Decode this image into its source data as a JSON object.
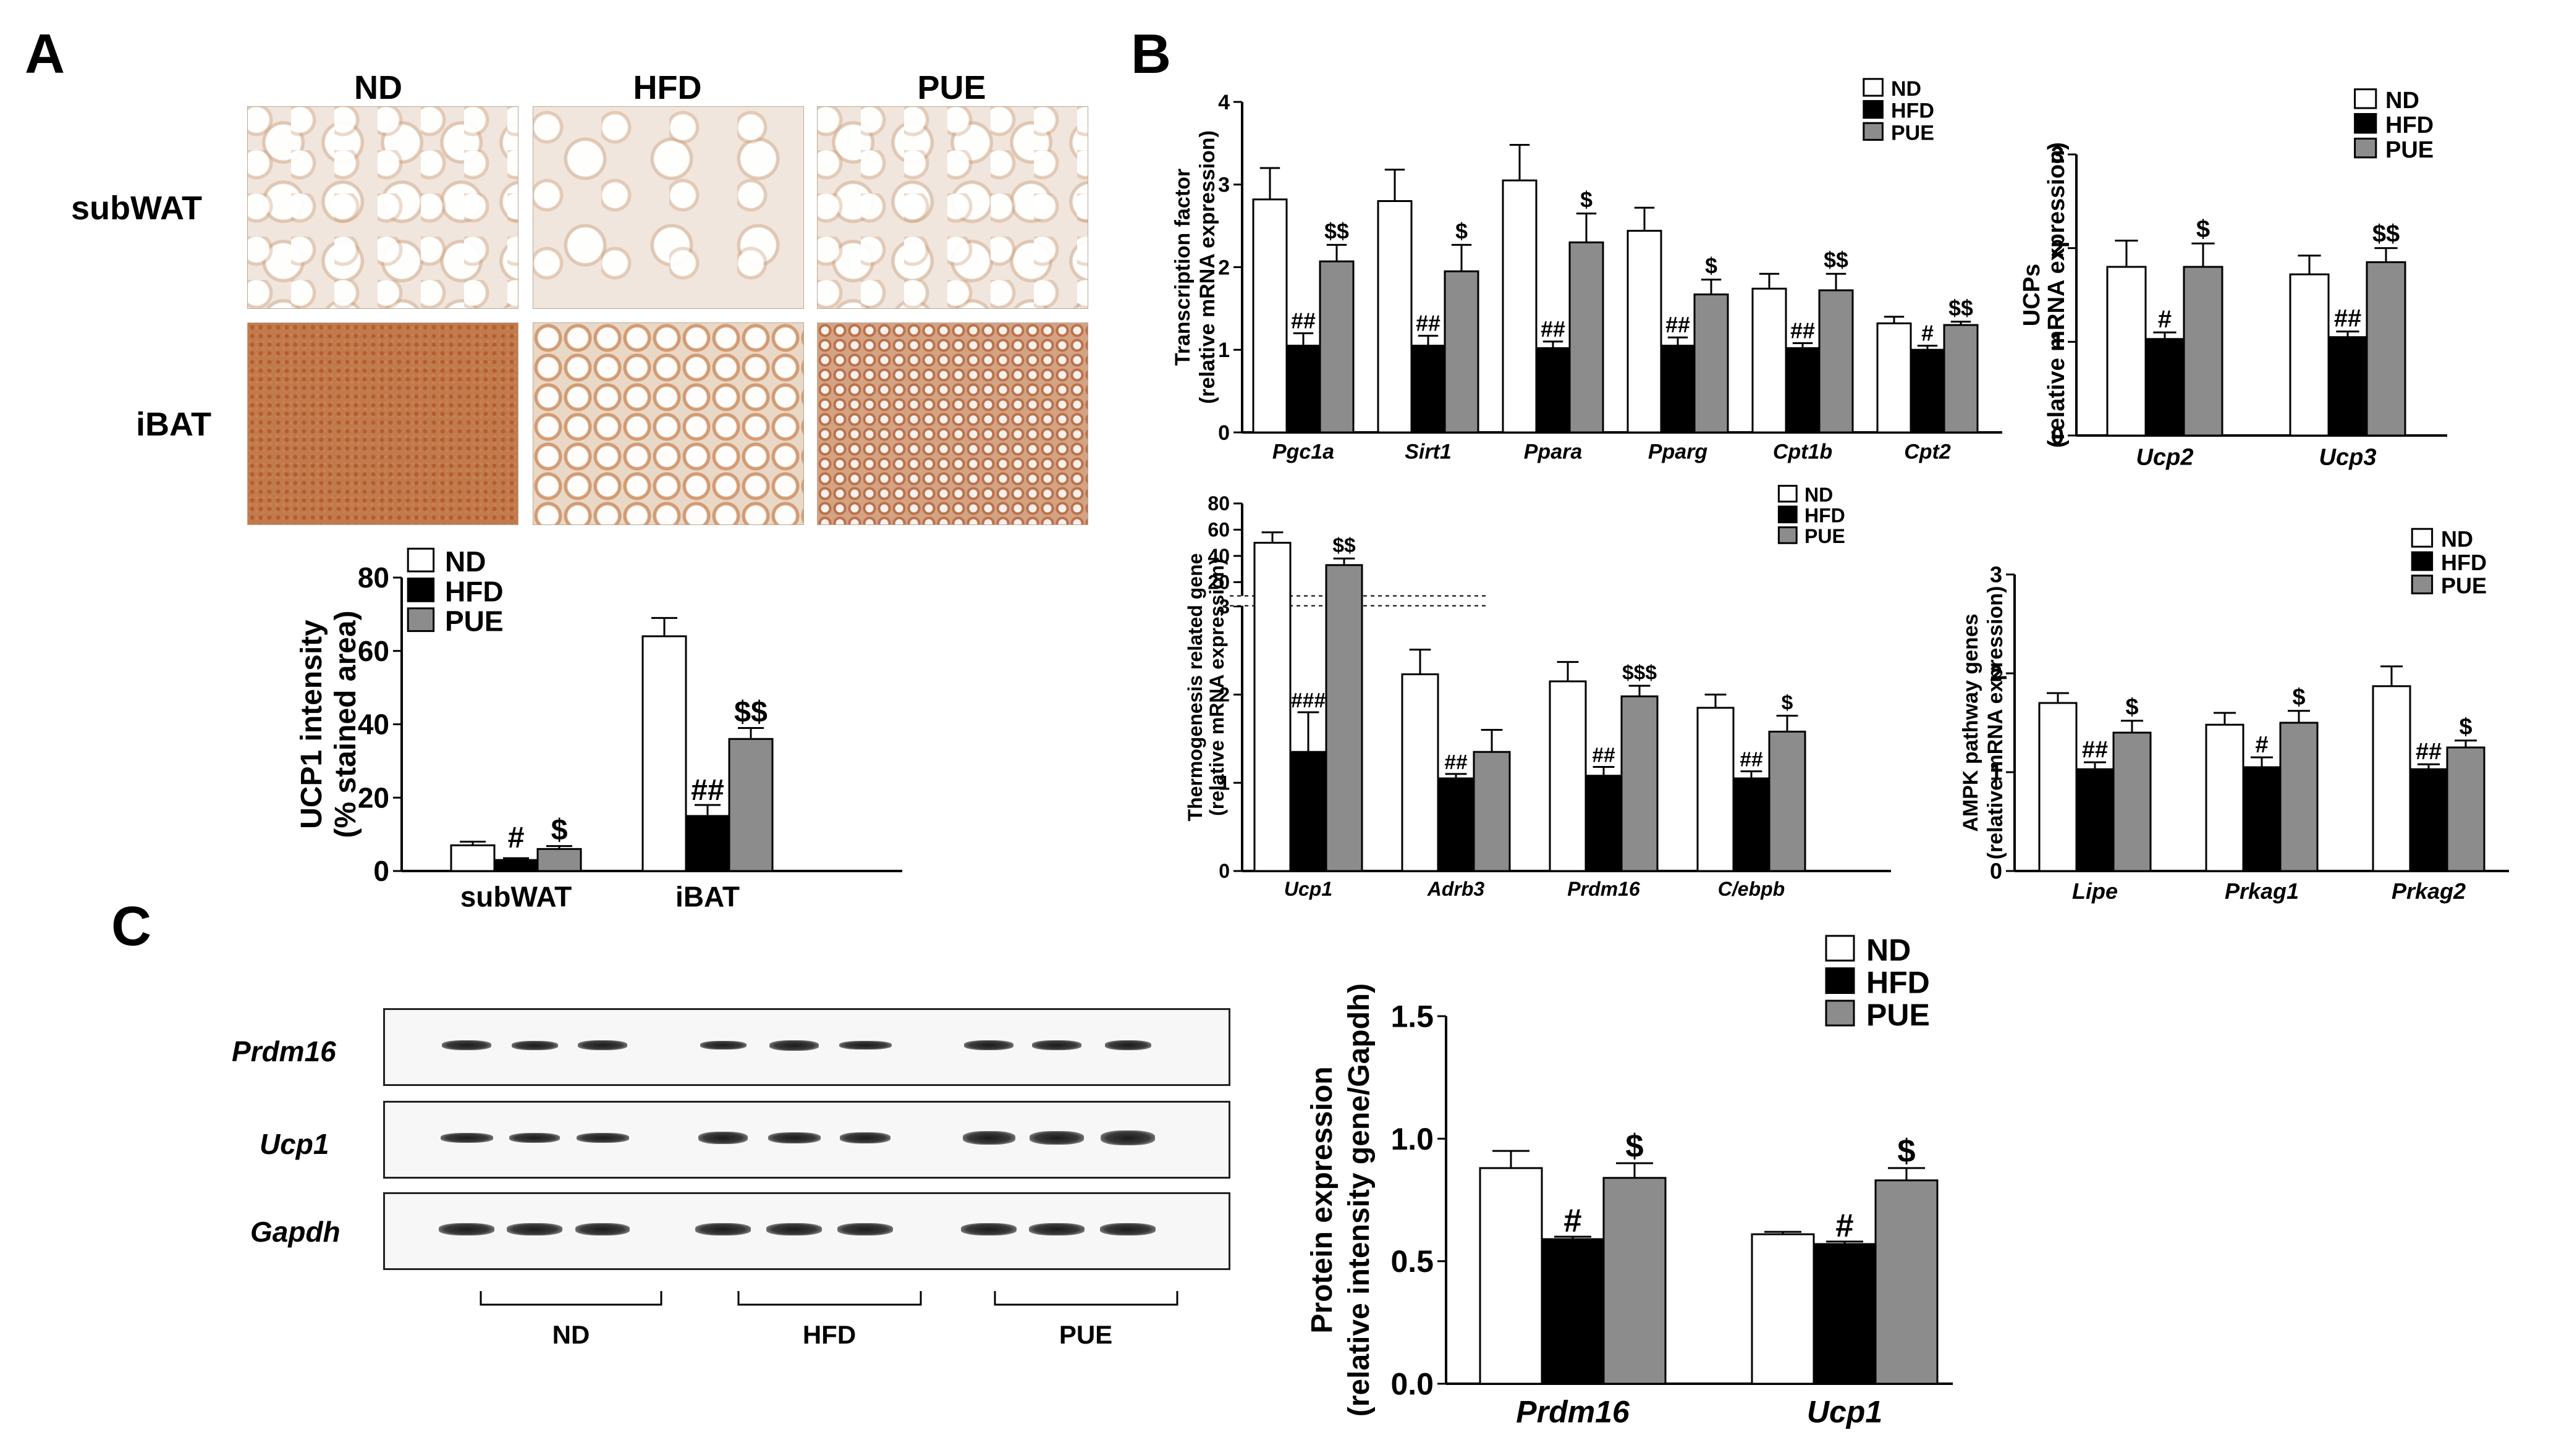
{
  "panel_labels": {
    "a": "A",
    "b": "B",
    "c": "C"
  },
  "panel_a": {
    "micro_columns": [
      "ND",
      "HFD",
      "PUE"
    ],
    "micro_rows": [
      "subWAT",
      "iBAT"
    ]
  },
  "panel_c": {
    "blot_rows": [
      "Prdm16",
      "Ucp1",
      "Gapdh"
    ],
    "blot_groups": [
      "ND",
      "HFD",
      "PUE"
    ]
  },
  "legend_groups": [
    "ND",
    "HFD",
    "PUE"
  ],
  "colors": {
    "ND": "#ffffff",
    "HFD": "#000000",
    "PUE": "#8c8c8c"
  },
  "chart_data": [
    {
      "id": "ucp1-intensity",
      "type": "bar",
      "categories": [
        "subWAT",
        "iBAT"
      ],
      "ylabel": [
        "UCP1 intensity",
        "(% stained area)"
      ],
      "ylim": [
        0,
        80
      ],
      "yticks": [
        0,
        20,
        40,
        60,
        80
      ],
      "series": [
        {
          "name": "ND",
          "values": [
            7,
            64
          ],
          "errors": [
            1,
            5
          ]
        },
        {
          "name": "HFD",
          "values": [
            3,
            15
          ],
          "errors": [
            0.5,
            3
          ]
        },
        {
          "name": "PUE",
          "values": [
            6,
            36
          ],
          "errors": [
            0.8,
            3
          ]
        }
      ],
      "annotations": [
        [
          "",
          "#",
          "$"
        ],
        [
          "",
          "##",
          "$$"
        ]
      ]
    },
    {
      "id": "transcription-factor",
      "type": "bar",
      "categories": [
        "Pgc1a",
        "Sirt1",
        "Ppara",
        "Pparg",
        "Cpt1b",
        "Cpt2"
      ],
      "ylabel": [
        "Transcription factor",
        "(relative mRNA expression)"
      ],
      "ylim": [
        0,
        4
      ],
      "yticks": [
        0,
        1,
        2,
        3,
        4
      ],
      "series": [
        {
          "name": "ND",
          "values": [
            2.82,
            2.8,
            3.05,
            2.44,
            1.74,
            1.32
          ],
          "errors": [
            0.38,
            0.38,
            0.43,
            0.28,
            0.18,
            0.08
          ]
        },
        {
          "name": "HFD",
          "values": [
            1.05,
            1.05,
            1.02,
            1.05,
            1.02,
            1.0
          ],
          "errors": [
            0.15,
            0.12,
            0.08,
            0.1,
            0.06,
            0.05
          ]
        },
        {
          "name": "PUE",
          "values": [
            2.07,
            1.95,
            2.3,
            1.67,
            1.72,
            1.3
          ],
          "errors": [
            0.2,
            0.32,
            0.35,
            0.18,
            0.2,
            0.04
          ]
        }
      ],
      "annotations": [
        [
          "",
          "##",
          "$$"
        ],
        [
          "",
          "##",
          "$"
        ],
        [
          "",
          "##",
          "$"
        ],
        [
          "",
          "##",
          "$"
        ],
        [
          "",
          "##",
          "$$"
        ],
        [
          "",
          "#",
          "$$"
        ]
      ]
    },
    {
      "id": "ucps",
      "type": "bar",
      "categories": [
        "Ucp2",
        "Ucp3"
      ],
      "ylabel": [
        "UCPs",
        "(relative mRNA expression)"
      ],
      "ylim": [
        0,
        3
      ],
      "yticks": [
        0,
        1,
        2,
        3
      ],
      "series": [
        {
          "name": "ND",
          "values": [
            1.8,
            1.72
          ],
          "errors": [
            0.28,
            0.2
          ]
        },
        {
          "name": "HFD",
          "values": [
            1.03,
            1.05
          ],
          "errors": [
            0.07,
            0.06
          ]
        },
        {
          "name": "PUE",
          "values": [
            1.8,
            1.85
          ],
          "errors": [
            0.25,
            0.15
          ]
        }
      ],
      "annotations": [
        [
          "",
          "#",
          "$"
        ],
        [
          "",
          "##",
          "$$"
        ]
      ]
    },
    {
      "id": "thermogenesis",
      "type": "bar",
      "categories": [
        "Ucp1",
        "Adrb3",
        "Prdm16",
        "C/ebpb"
      ],
      "ylabel": [
        "Thermogenesis related gene",
        "(relative mRNA expression)"
      ],
      "ylim": [
        0,
        80
      ],
      "yaxis_break": [
        3,
        10
      ],
      "yticks": [
        0,
        1,
        2,
        3,
        20,
        40,
        60,
        80
      ],
      "series": [
        {
          "name": "ND",
          "values": [
            50,
            2.23,
            2.15,
            1.85
          ],
          "errors": [
            8,
            0.28,
            0.22,
            0.15
          ]
        },
        {
          "name": "HFD",
          "values": [
            1.35,
            1.05,
            1.08,
            1.05
          ],
          "errors": [
            0.45,
            0.05,
            0.1,
            0.08
          ]
        },
        {
          "name": "PUE",
          "values": [
            33,
            1.35,
            1.98,
            1.58
          ],
          "errors": [
            5,
            0.25,
            0.12,
            0.18
          ]
        }
      ],
      "annotations": [
        [
          "",
          "###",
          "$$"
        ],
        [
          "",
          "##",
          ""
        ],
        [
          "",
          "##",
          "$$$"
        ],
        [
          "",
          "##",
          "$"
        ]
      ]
    },
    {
      "id": "ampk",
      "type": "bar",
      "categories": [
        "Lipe",
        "Prkag1",
        "Prkag2"
      ],
      "ylabel": [
        "AMPK pathway genes",
        "(relative mRNA expression)"
      ],
      "ylim": [
        0,
        3
      ],
      "yticks": [
        0,
        1,
        2,
        3
      ],
      "series": [
        {
          "name": "ND",
          "values": [
            1.7,
            1.48,
            1.87
          ],
          "errors": [
            0.1,
            0.12,
            0.2
          ]
        },
        {
          "name": "HFD",
          "values": [
            1.03,
            1.05,
            1.03
          ],
          "errors": [
            0.07,
            0.1,
            0.05
          ]
        },
        {
          "name": "PUE",
          "values": [
            1.4,
            1.5,
            1.25
          ],
          "errors": [
            0.12,
            0.12,
            0.07
          ]
        }
      ],
      "annotations": [
        [
          "",
          "##",
          "$"
        ],
        [
          "",
          "#",
          "$"
        ],
        [
          "",
          "##",
          "$"
        ]
      ]
    },
    {
      "id": "protein-expression",
      "type": "bar",
      "categories": [
        "Prdm16",
        "Ucp1"
      ],
      "ylabel": [
        "Protein expression",
        "(relative intensity gene/Gapdh)"
      ],
      "ylim": [
        0,
        1.5
      ],
      "yticks": [
        0.0,
        0.5,
        1.0,
        1.5
      ],
      "series": [
        {
          "name": "ND",
          "values": [
            0.88,
            0.61
          ],
          "errors": [
            0.07,
            0.01
          ]
        },
        {
          "name": "HFD",
          "values": [
            0.59,
            0.57
          ],
          "errors": [
            0.01,
            0.01
          ]
        },
        {
          "name": "PUE",
          "values": [
            0.84,
            0.83
          ],
          "errors": [
            0.06,
            0.05
          ]
        }
      ],
      "annotations": [
        [
          "",
          "#",
          "$"
        ],
        [
          "",
          "#",
          "$"
        ]
      ]
    }
  ]
}
